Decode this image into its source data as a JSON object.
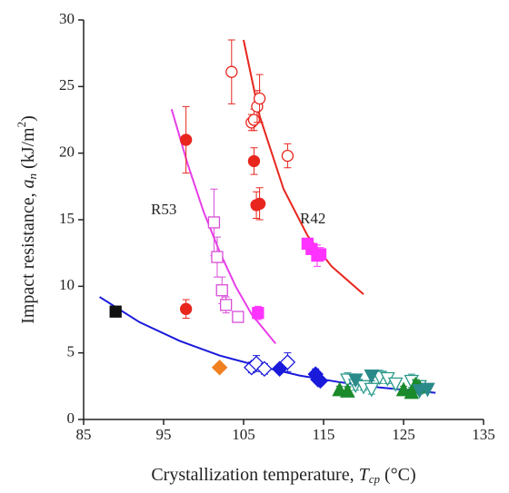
{
  "chart_data": {
    "type": "scatter",
    "xlabel_parts": [
      "Crystallization temperature, ",
      "T",
      "cp",
      " (°C)"
    ],
    "ylabel_parts": [
      "Impact resistance, ",
      "a",
      "n",
      " (kJ/m",
      "2",
      ")"
    ],
    "annotations": [
      "R53",
      "R42"
    ],
    "xlim": [
      85,
      135
    ],
    "ylim": [
      0,
      30
    ],
    "xticks": [
      85,
      95,
      105,
      115,
      125,
      135
    ],
    "yticks": [
      0,
      5,
      10,
      15,
      20,
      25,
      30
    ],
    "fits": [
      {
        "color": "#e8261e",
        "x": [
          105,
          107,
          110,
          113,
          116,
          120
        ],
        "values": [
          28.5,
          22.8,
          17.3,
          13.8,
          11.5,
          9.4
        ]
      },
      {
        "color": "#e83ee8",
        "x": [
          96,
          98,
          100,
          102,
          104,
          106,
          109
        ],
        "values": [
          23.3,
          19.2,
          15.6,
          12.6,
          10.0,
          7.9,
          5.7
        ]
      },
      {
        "color": "#1a1adb",
        "x": [
          87,
          92,
          97,
          102,
          107,
          112,
          117,
          122,
          129
        ],
        "values": [
          9.2,
          7.3,
          5.9,
          4.8,
          4.0,
          3.3,
          2.8,
          2.4,
          2.0
        ]
      }
    ],
    "series": [
      {
        "marker": "circle",
        "filled": false,
        "color": "#e8261e",
        "x": [
          103.5,
          106,
          106.3,
          106.7,
          107,
          110.5
        ],
        "values": [
          26.1,
          22.3,
          22.5,
          23.5,
          24.1,
          19.8
        ],
        "errors": [
          2.4,
          0.6,
          0.8,
          1.2,
          1.8,
          0.9
        ]
      },
      {
        "marker": "circle",
        "filled": true,
        "color": "#e8261e",
        "x": [
          97.8,
          106.3,
          106.6,
          107,
          97.8
        ],
        "values": [
          21.0,
          19.4,
          16.1,
          16.2,
          8.3
        ],
        "errors": [
          2.5,
          1.0,
          1.0,
          1.2,
          0.7
        ]
      },
      {
        "marker": "square",
        "filled": false,
        "color": "#d84ed8",
        "x": [
          101.3,
          101.7,
          102.3,
          102.8,
          104.3
        ],
        "values": [
          14.8,
          12.2,
          9.7,
          8.6,
          7.7
        ],
        "errors": [
          2.5,
          1.5,
          1.0,
          0.6,
          0.3
        ]
      },
      {
        "marker": "square",
        "filled": true,
        "color": "#ff33ff",
        "x": [
          106.8,
          113,
          113.5,
          114.2,
          114.6
        ],
        "values": [
          8.0,
          13.2,
          12.8,
          12.3,
          12.4
        ],
        "errors": [
          0.5,
          0.4,
          0.4,
          0.8,
          0.5
        ]
      },
      {
        "marker": "square",
        "filled": true,
        "color": "#111111",
        "x": [
          89
        ],
        "values": [
          8.1
        ],
        "errors": [
          0.3
        ]
      },
      {
        "marker": "diamond",
        "filled": true,
        "color": "#f08020",
        "x": [
          102
        ],
        "values": [
          3.9
        ],
        "errors": [
          0.2
        ]
      },
      {
        "marker": "diamond",
        "filled": false,
        "color": "#1a1adb",
        "x": [
          106,
          106.6,
          107.6,
          110.5
        ],
        "values": [
          3.9,
          4.2,
          3.8,
          4.3
        ],
        "errors": [
          0.4,
          0.6,
          0.4,
          0.7
        ]
      },
      {
        "marker": "diamond",
        "filled": true,
        "color": "#1a1adb",
        "x": [
          109.5,
          114,
          114.3,
          114.6
        ],
        "values": [
          3.8,
          3.4,
          3.0,
          2.9
        ],
        "errors": [
          0.3,
          0.4,
          0.3,
          0.3
        ]
      },
      {
        "marker": "tridown",
        "filled": false,
        "color": "#2a9a8a",
        "x": [
          118,
          119,
          120,
          121,
          122,
          123,
          124,
          126,
          127
        ],
        "values": [
          3.0,
          2.6,
          2.5,
          2.3,
          3.2,
          3.1,
          2.7,
          2.9,
          2.5
        ],
        "errors": [
          0.5,
          0.4,
          0.3,
          0.4,
          0.5,
          0.4,
          0.4,
          0.5,
          0.4
        ]
      },
      {
        "marker": "triup",
        "filled": true,
        "color": "#1a8a2a",
        "x": [
          117,
          118,
          125,
          126,
          126.5,
          127
        ],
        "values": [
          2.2,
          2.1,
          2.2,
          2.0,
          2.6,
          2.4
        ],
        "errors": [
          0.3,
          0.3,
          0.3,
          0.3,
          0.4,
          0.3
        ]
      },
      {
        "marker": "tridown",
        "filled": true,
        "color": "#2a8a8a",
        "x": [
          119,
          121,
          127,
          128
        ],
        "values": [
          3.0,
          3.3,
          2.2,
          2.3
        ],
        "errors": [
          0.4,
          0.4,
          0.3,
          0.3
        ]
      }
    ]
  }
}
